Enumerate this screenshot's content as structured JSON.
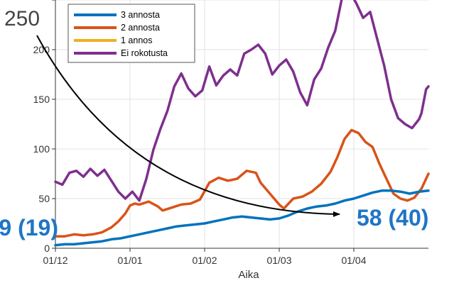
{
  "chart_data": {
    "type": "line",
    "xlabel": "Aika",
    "ylabel": "",
    "ylim": [
      0,
      250
    ],
    "y_ticks": [
      "0",
      "50",
      "100",
      "150",
      "200",
      "250"
    ],
    "x_tick_labels": [
      "01/12",
      "01/01",
      "01/02",
      "01/03",
      "01/04"
    ],
    "grid": true,
    "legend_position": "top-left",
    "series": [
      {
        "name": "3 annosta",
        "color": "#0072BD",
        "points": [
          [
            0,
            3
          ],
          [
            4,
            4
          ],
          [
            8,
            4
          ],
          [
            12,
            5
          ],
          [
            16,
            6
          ],
          [
            20,
            7
          ],
          [
            24,
            9
          ],
          [
            28,
            10
          ],
          [
            32,
            12
          ],
          [
            36,
            14
          ],
          [
            40,
            16
          ],
          [
            44,
            18
          ],
          [
            48,
            20
          ],
          [
            52,
            22
          ],
          [
            56,
            23
          ],
          [
            60,
            24
          ],
          [
            64,
            25
          ],
          [
            68,
            27
          ],
          [
            72,
            29
          ],
          [
            76,
            31
          ],
          [
            80,
            32
          ],
          [
            84,
            31
          ],
          [
            88,
            30
          ],
          [
            92,
            29
          ],
          [
            96,
            30
          ],
          [
            100,
            33
          ],
          [
            104,
            37
          ],
          [
            108,
            40
          ],
          [
            112,
            42
          ],
          [
            116,
            43
          ],
          [
            120,
            45
          ],
          [
            124,
            48
          ],
          [
            128,
            50
          ],
          [
            132,
            53
          ],
          [
            136,
            56
          ],
          [
            140,
            58
          ],
          [
            144,
            58
          ],
          [
            148,
            57
          ],
          [
            152,
            55
          ],
          [
            156,
            57
          ],
          [
            160,
            58
          ]
        ]
      },
      {
        "name": "2 annosta",
        "color": "#D95319",
        "points": [
          [
            0,
            12
          ],
          [
            4,
            12
          ],
          [
            8,
            14
          ],
          [
            12,
            13
          ],
          [
            16,
            14
          ],
          [
            20,
            16
          ],
          [
            24,
            21
          ],
          [
            27,
            27
          ],
          [
            30,
            35
          ],
          [
            32,
            43
          ],
          [
            34,
            45
          ],
          [
            36,
            44
          ],
          [
            40,
            47
          ],
          [
            44,
            42
          ],
          [
            46,
            38
          ],
          [
            50,
            41
          ],
          [
            54,
            44
          ],
          [
            58,
            45
          ],
          [
            62,
            49
          ],
          [
            66,
            66
          ],
          [
            70,
            71
          ],
          [
            74,
            68
          ],
          [
            78,
            70
          ],
          [
            82,
            78
          ],
          [
            86,
            76
          ],
          [
            88,
            66
          ],
          [
            92,
            55
          ],
          [
            96,
            44
          ],
          [
            98,
            40
          ],
          [
            102,
            50
          ],
          [
            106,
            52
          ],
          [
            110,
            57
          ],
          [
            114,
            65
          ],
          [
            118,
            77
          ],
          [
            121,
            92
          ],
          [
            124,
            110
          ],
          [
            127,
            119
          ],
          [
            130,
            116
          ],
          [
            133,
            107
          ],
          [
            136,
            102
          ],
          [
            139,
            85
          ],
          [
            142,
            70
          ],
          [
            145,
            55
          ],
          [
            148,
            50
          ],
          [
            151,
            48
          ],
          [
            154,
            51
          ],
          [
            157,
            60
          ],
          [
            160,
            75
          ]
        ]
      },
      {
        "name": "1 annos",
        "color": "#EDB120",
        "points": []
      },
      {
        "name": "Ei rokotusta",
        "color": "#7E2F8E",
        "points": [
          [
            0,
            67
          ],
          [
            3,
            64
          ],
          [
            6,
            76
          ],
          [
            9,
            78
          ],
          [
            12,
            72
          ],
          [
            15,
            80
          ],
          [
            18,
            73
          ],
          [
            21,
            79
          ],
          [
            24,
            68
          ],
          [
            27,
            57
          ],
          [
            30,
            50
          ],
          [
            33,
            57
          ],
          [
            36,
            48
          ],
          [
            39,
            70
          ],
          [
            42,
            99
          ],
          [
            45,
            120
          ],
          [
            48,
            138
          ],
          [
            51,
            163
          ],
          [
            54,
            176
          ],
          [
            57,
            161
          ],
          [
            60,
            153
          ],
          [
            63,
            159
          ],
          [
            66,
            183
          ],
          [
            69,
            164
          ],
          [
            72,
            174
          ],
          [
            75,
            180
          ],
          [
            78,
            174
          ],
          [
            81,
            196
          ],
          [
            84,
            200
          ],
          [
            87,
            205
          ],
          [
            90,
            196
          ],
          [
            93,
            175
          ],
          [
            96,
            184
          ],
          [
            99,
            190
          ],
          [
            102,
            178
          ],
          [
            105,
            157
          ],
          [
            108,
            144
          ],
          [
            111,
            170
          ],
          [
            114,
            181
          ],
          [
            117,
            202
          ],
          [
            120,
            219
          ],
          [
            123,
            253
          ],
          [
            126,
            259
          ],
          [
            129,
            247
          ],
          [
            132,
            232
          ],
          [
            135,
            238
          ],
          [
            138,
            211
          ],
          [
            141,
            184
          ],
          [
            144,
            150
          ],
          [
            147,
            131
          ],
          [
            150,
            125
          ],
          [
            153,
            121
          ],
          [
            156,
            130
          ],
          [
            157,
            136
          ],
          [
            159,
            160
          ],
          [
            160,
            163
          ]
        ]
      }
    ],
    "annotations": {
      "left_value": "9 (19)",
      "right_value": "58 (40)",
      "top_value": "250",
      "annotation_color": "#1F75C4",
      "top_value_color": "#444444"
    }
  }
}
